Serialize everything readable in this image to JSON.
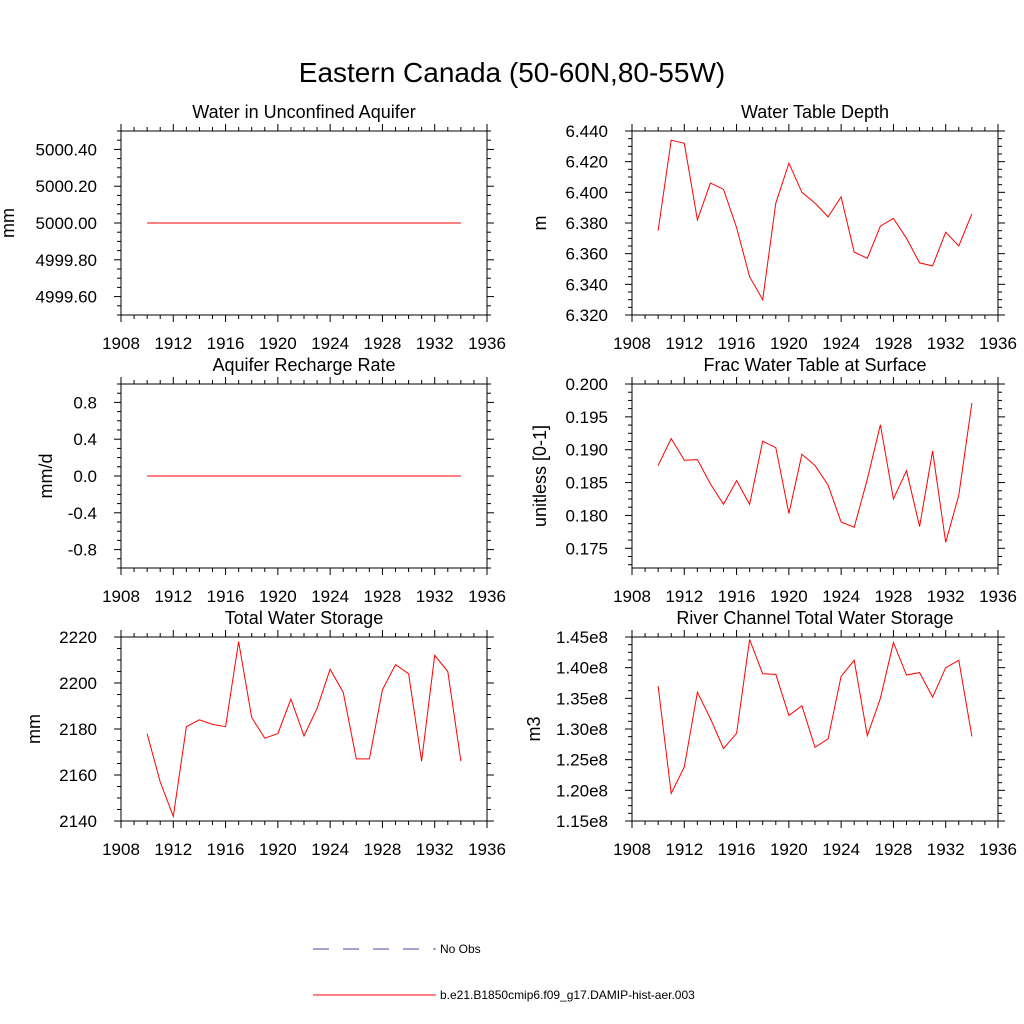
{
  "title": "Eastern Canada (50-60N,80-55W)",
  "colors": {
    "model": "#ff0000",
    "obs": "#4a4aa8",
    "axis": "#000000"
  },
  "legend": {
    "items": [
      {
        "label": "No Obs",
        "style": "dashed",
        "color": "#4a4aa8"
      },
      {
        "label": "b.e21.B1850cmip6.f09_g17.DAMIP-hist-aer.003",
        "style": "solid",
        "color": "#ff0000"
      }
    ]
  },
  "chart_data": [
    {
      "type": "line",
      "title": "Water in Unconfined Aquifer",
      "ylabel": "mm",
      "xlim": [
        1908,
        1936
      ],
      "ylim": [
        4999.5,
        5000.5
      ],
      "xticks": [
        1908,
        1912,
        1916,
        1920,
        1924,
        1928,
        1932,
        1936
      ],
      "yticks": [
        4999.6,
        4999.8,
        5000.0,
        5000.2,
        5000.4
      ],
      "ytick_labels": [
        "4999.60",
        "4999.80",
        "5000.00",
        "5000.20",
        "5000.40"
      ],
      "x": [
        1910,
        1911,
        1912,
        1913,
        1914,
        1915,
        1916,
        1917,
        1918,
        1919,
        1920,
        1921,
        1922,
        1923,
        1924,
        1925,
        1926,
        1927,
        1928,
        1929,
        1930,
        1931,
        1932,
        1933,
        1934
      ],
      "series": [
        {
          "name": "b.e21.B1850cmip6.f09_g17.DAMIP-hist-aer.003",
          "values": [
            5000,
            5000,
            5000,
            5000,
            5000,
            5000,
            5000,
            5000,
            5000,
            5000,
            5000,
            5000,
            5000,
            5000,
            5000,
            5000,
            5000,
            5000,
            5000,
            5000,
            5000,
            5000,
            5000,
            5000,
            5000
          ]
        }
      ]
    },
    {
      "type": "line",
      "title": "Water Table Depth",
      "ylabel": "m",
      "xlim": [
        1908,
        1936
      ],
      "ylim": [
        6.32,
        6.44
      ],
      "xticks": [
        1908,
        1912,
        1916,
        1920,
        1924,
        1928,
        1932,
        1936
      ],
      "yticks": [
        6.32,
        6.34,
        6.36,
        6.38,
        6.4,
        6.42,
        6.44
      ],
      "ytick_labels": [
        "6.320",
        "6.340",
        "6.360",
        "6.380",
        "6.400",
        "6.420",
        "6.440"
      ],
      "x": [
        1910,
        1911,
        1912,
        1913,
        1914,
        1915,
        1916,
        1917,
        1918,
        1919,
        1920,
        1921,
        1922,
        1923,
        1924,
        1925,
        1926,
        1927,
        1928,
        1929,
        1930,
        1931,
        1932,
        1933,
        1934
      ],
      "series": [
        {
          "name": "b.e21.B1850cmip6.f09_g17.DAMIP-hist-aer.003",
          "values": [
            6.375,
            6.434,
            6.432,
            6.382,
            6.406,
            6.402,
            6.377,
            6.345,
            6.33,
            6.393,
            6.419,
            6.4,
            6.393,
            6.384,
            6.397,
            6.361,
            6.357,
            6.378,
            6.383,
            6.37,
            6.354,
            6.352,
            6.374,
            6.365,
            6.386
          ]
        }
      ]
    },
    {
      "type": "line",
      "title": "Aquifer Recharge Rate",
      "ylabel": "mm/d",
      "xlim": [
        1908,
        1936
      ],
      "ylim": [
        -1.0,
        1.0
      ],
      "xticks": [
        1908,
        1912,
        1916,
        1920,
        1924,
        1928,
        1932,
        1936
      ],
      "yticks": [
        -0.8,
        -0.4,
        0.0,
        0.4,
        0.8
      ],
      "ytick_labels": [
        "-0.8",
        "-0.4",
        "0.0",
        "0.4",
        "0.8"
      ],
      "x": [
        1910,
        1911,
        1912,
        1913,
        1914,
        1915,
        1916,
        1917,
        1918,
        1919,
        1920,
        1921,
        1922,
        1923,
        1924,
        1925,
        1926,
        1927,
        1928,
        1929,
        1930,
        1931,
        1932,
        1933,
        1934
      ],
      "series": [
        {
          "name": "b.e21.B1850cmip6.f09_g17.DAMIP-hist-aer.003",
          "values": [
            0,
            0,
            0,
            0,
            0,
            0,
            0,
            0,
            0,
            0,
            0,
            0,
            0,
            0,
            0,
            0,
            0,
            0,
            0,
            0,
            0,
            0,
            0,
            0,
            0
          ]
        }
      ]
    },
    {
      "type": "line",
      "title": "Frac Water Table at Surface",
      "ylabel": "unitless [0-1]",
      "xlim": [
        1908,
        1936
      ],
      "ylim": [
        0.172,
        0.2
      ],
      "xticks": [
        1908,
        1912,
        1916,
        1920,
        1924,
        1928,
        1932,
        1936
      ],
      "yticks": [
        0.175,
        0.18,
        0.185,
        0.19,
        0.195,
        0.2
      ],
      "ytick_labels": [
        "0.175",
        "0.180",
        "0.185",
        "0.190",
        "0.195",
        "0.200"
      ],
      "x": [
        1910,
        1911,
        1912,
        1913,
        1914,
        1915,
        1916,
        1917,
        1918,
        1919,
        1920,
        1921,
        1922,
        1923,
        1924,
        1925,
        1926,
        1927,
        1928,
        1929,
        1930,
        1931,
        1932,
        1933,
        1934
      ],
      "series": [
        {
          "name": "b.e21.B1850cmip6.f09_g17.DAMIP-hist-aer.003",
          "values": [
            0.1876,
            0.1917,
            0.1884,
            0.1885,
            0.1848,
            0.1817,
            0.1853,
            0.1817,
            0.1913,
            0.1903,
            0.1803,
            0.1893,
            0.1876,
            0.1846,
            0.179,
            0.1782,
            0.1855,
            0.1938,
            0.1825,
            0.1868,
            0.1783,
            0.1898,
            0.1759,
            0.1831,
            0.1971
          ]
        }
      ]
    },
    {
      "type": "line",
      "title": "Total Water Storage",
      "ylabel": "mm",
      "xlim": [
        1908,
        1936
      ],
      "ylim": [
        2140,
        2220
      ],
      "xticks": [
        1908,
        1912,
        1916,
        1920,
        1924,
        1928,
        1932,
        1936
      ],
      "yticks": [
        2140,
        2160,
        2180,
        2200,
        2220
      ],
      "ytick_labels": [
        "2140",
        "2160",
        "2180",
        "2200",
        "2220"
      ],
      "x": [
        1910,
        1911,
        1912,
        1913,
        1914,
        1915,
        1916,
        1917,
        1918,
        1919,
        1920,
        1921,
        1922,
        1923,
        1924,
        1925,
        1926,
        1927,
        1928,
        1929,
        1930,
        1931,
        1932,
        1933,
        1934
      ],
      "series": [
        {
          "name": "b.e21.B1850cmip6.f09_g17.DAMIP-hist-aer.003",
          "values": [
            2178,
            2157,
            2142,
            2181,
            2184,
            2182,
            2181,
            2218,
            2185,
            2176,
            2178,
            2193,
            2177,
            2189,
            2206,
            2196,
            2167,
            2167,
            2197,
            2208,
            2204,
            2166,
            2212,
            2205,
            2166
          ]
        }
      ]
    },
    {
      "type": "line",
      "title": "River Channel Total Water Storage",
      "ylabel": "m3",
      "xlim": [
        1908,
        1936
      ],
      "ylim": [
        115000000,
        145000000
      ],
      "xticks": [
        1908,
        1912,
        1916,
        1920,
        1924,
        1928,
        1932,
        1936
      ],
      "yticks": [
        115000000,
        120000000,
        125000000,
        130000000,
        135000000,
        140000000,
        145000000
      ],
      "ytick_labels": [
        "1.15e8",
        "1.20e8",
        "1.25e8",
        "1.30e8",
        "1.35e8",
        "1.40e8",
        "1.45e8"
      ],
      "x": [
        1910,
        1911,
        1912,
        1913,
        1914,
        1915,
        1916,
        1917,
        1918,
        1919,
        1920,
        1921,
        1922,
        1923,
        1924,
        1925,
        1926,
        1927,
        1928,
        1929,
        1930,
        1931,
        1932,
        1933,
        1934
      ],
      "series": [
        {
          "name": "b.e21.B1850cmip6.f09_g17.DAMIP-hist-aer.003",
          "values": [
            137000000,
            119500000,
            123800000,
            136000000,
            131700000,
            126800000,
            129300000,
            144600000,
            139000000,
            138900000,
            132200000,
            133800000,
            127000000,
            128400000,
            138600000,
            141200000,
            128900000,
            135000000,
            144100000,
            138800000,
            139200000,
            135200000,
            140000000,
            141200000,
            128800000
          ]
        }
      ]
    }
  ]
}
